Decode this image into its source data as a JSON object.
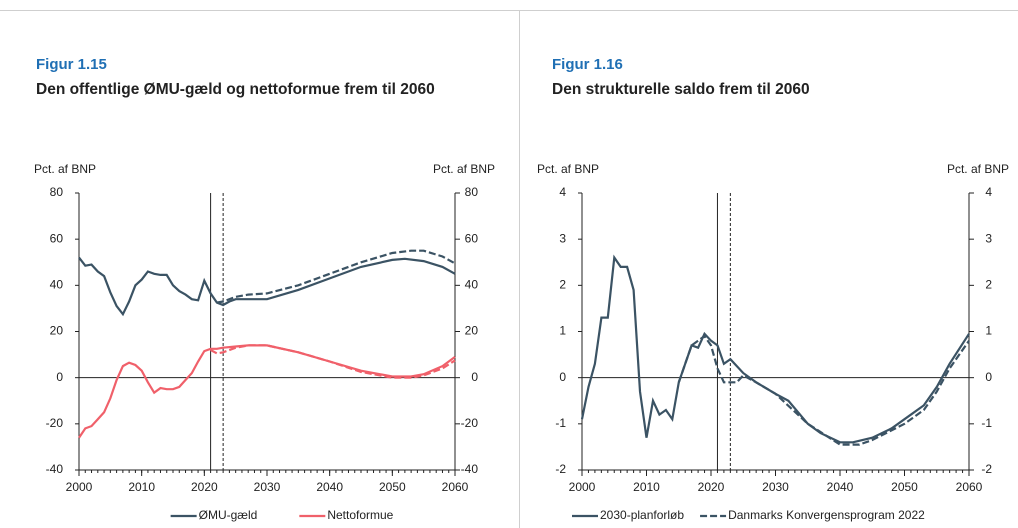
{
  "chart_data": [
    {
      "type": "line",
      "figure_label": "Figur 1.15",
      "title": "Den offentlige ØMU-gæld og nettoformue frem til 2060",
      "ylabel": "Pct. af BNP",
      "y2label": "Pct. af BNP",
      "xlim": [
        2000,
        2060
      ],
      "xticks": [
        2000,
        2010,
        2020,
        2030,
        2040,
        2050,
        2060
      ],
      "ylim": [
        -40,
        80
      ],
      "yticks": [
        -40,
        -20,
        0,
        20,
        40,
        60,
        80
      ],
      "y2lim": [
        -40,
        80
      ],
      "y2ticks": [
        -40,
        -20,
        0,
        20,
        40,
        60,
        80
      ],
      "vlines": [
        {
          "value": 2021,
          "style": "solid"
        },
        {
          "value": 2023,
          "style": "dashed"
        }
      ],
      "series": [
        {
          "name": "ØMU-gæld",
          "color": "#3b5364",
          "dash": false,
          "x": [
            2000,
            2001,
            2002,
            2003,
            2004,
            2005,
            2006,
            2007,
            2008,
            2009,
            2010,
            2011,
            2012,
            2013,
            2014,
            2015,
            2016,
            2017,
            2018,
            2019,
            2020,
            2021,
            2022,
            2023,
            2024,
            2025,
            2030,
            2035,
            2040,
            2045,
            2050,
            2052,
            2055,
            2058,
            2060
          ],
          "values": [
            52,
            48.5,
            49,
            46,
            44,
            37,
            31,
            27.5,
            33,
            40,
            42.5,
            46,
            45,
            44.5,
            44.5,
            40,
            37.5,
            36,
            34,
            33.5,
            42,
            36.5,
            32.5,
            31.5,
            33,
            34,
            34,
            38,
            43,
            48,
            51,
            51.5,
            50.5,
            48,
            45
          ]
        },
        {
          "color": "#3b5364",
          "dash": true,
          "x": [
            2022,
            2023,
            2025,
            2027,
            2030,
            2035,
            2040,
            2045,
            2050,
            2053,
            2055,
            2058,
            2060
          ],
          "values": [
            32.5,
            33,
            35,
            36,
            36.5,
            40,
            45,
            50,
            54,
            55,
            55,
            52.5,
            49.5
          ]
        },
        {
          "name": "Nettoformue",
          "color": "#f0606a",
          "dash": false,
          "x": [
            2000,
            2001,
            2002,
            2003,
            2004,
            2005,
            2006,
            2007,
            2008,
            2009,
            2010,
            2011,
            2012,
            2013,
            2014,
            2015,
            2016,
            2017,
            2018,
            2019,
            2020,
            2021,
            2022,
            2023,
            2025,
            2027,
            2030,
            2035,
            2040,
            2045,
            2050,
            2053,
            2055,
            2058,
            2060
          ],
          "values": [
            -26,
            -22,
            -21,
            -18,
            -15,
            -9,
            -1,
            5,
            6.5,
            5.5,
            3,
            -2,
            -6.5,
            -4.5,
            -5,
            -5,
            -4,
            -1,
            2,
            7,
            11.5,
            12.5,
            12.5,
            13,
            13.5,
            14,
            14,
            11,
            7,
            3,
            0.5,
            0.5,
            1.5,
            5,
            9
          ]
        },
        {
          "color": "#f0606a",
          "dash": true,
          "x": [
            2021,
            2022,
            2023,
            2025,
            2027,
            2030,
            2035,
            2040,
            2045,
            2050,
            2053,
            2055,
            2058,
            2060
          ],
          "values": [
            12,
            10.5,
            11,
            13,
            14,
            14,
            11,
            7,
            2.5,
            0,
            0,
            1,
            4,
            7.5
          ]
        }
      ]
    },
    {
      "type": "line",
      "figure_label": "Figur 1.16",
      "title": "Den strukturelle saldo frem til 2060",
      "ylabel": "Pct. af BNP",
      "y2label": "Pct. af BNP",
      "xlim": [
        2000,
        2060
      ],
      "xticks": [
        2000,
        2010,
        2020,
        2030,
        2040,
        2050,
        2060
      ],
      "ylim": [
        -2,
        4
      ],
      "yticks": [
        -2,
        -1,
        0,
        1,
        2,
        3,
        4
      ],
      "y2lim": [
        -2,
        4
      ],
      "y2ticks": [
        -2,
        -1,
        0,
        1,
        2,
        3,
        4
      ],
      "vlines": [
        {
          "value": 2021,
          "style": "solid"
        },
        {
          "value": 2023,
          "style": "dashed"
        }
      ],
      "series": [
        {
          "name": "2030-planforløb",
          "color": "#3b5364",
          "dash": false,
          "x": [
            2000,
            2001,
            2002,
            2003,
            2004,
            2005,
            2006,
            2007,
            2008,
            2009,
            2010,
            2011,
            2012,
            2013,
            2014,
            2015,
            2016,
            2017,
            2018,
            2019,
            2020,
            2021,
            2022,
            2023,
            2025,
            2027,
            2030,
            2032,
            2035,
            2037,
            2040,
            2042,
            2045,
            2048,
            2050,
            2053,
            2055,
            2057,
            2060
          ],
          "values": [
            -0.9,
            -0.2,
            0.3,
            1.3,
            1.3,
            2.6,
            2.4,
            2.4,
            1.9,
            -0.3,
            -1.3,
            -0.5,
            -0.8,
            -0.7,
            -0.9,
            -0.1,
            0.3,
            0.7,
            0.65,
            0.95,
            0.8,
            0.7,
            0.3,
            0.4,
            0.1,
            -0.1,
            -0.35,
            -0.5,
            -1.0,
            -1.2,
            -1.4,
            -1.4,
            -1.3,
            -1.1,
            -0.9,
            -0.6,
            -0.2,
            0.3,
            0.95
          ]
        },
        {
          "name": "Danmarks Konvergensprogram 2022",
          "color": "#3b5364",
          "dash": true,
          "x": [
            2015,
            2016,
            2017,
            2018,
            2019,
            2020,
            2021,
            2022,
            2024,
            2025,
            2027,
            2030,
            2035,
            2040,
            2043,
            2045,
            2050,
            2053,
            2055,
            2057,
            2060
          ],
          "values": [
            -0.1,
            0.3,
            0.7,
            0.8,
            0.9,
            0.7,
            0.2,
            -0.1,
            -0.1,
            0.05,
            -0.1,
            -0.35,
            -1.0,
            -1.45,
            -1.45,
            -1.35,
            -1.0,
            -0.7,
            -0.3,
            0.2,
            0.8
          ]
        }
      ]
    }
  ]
}
